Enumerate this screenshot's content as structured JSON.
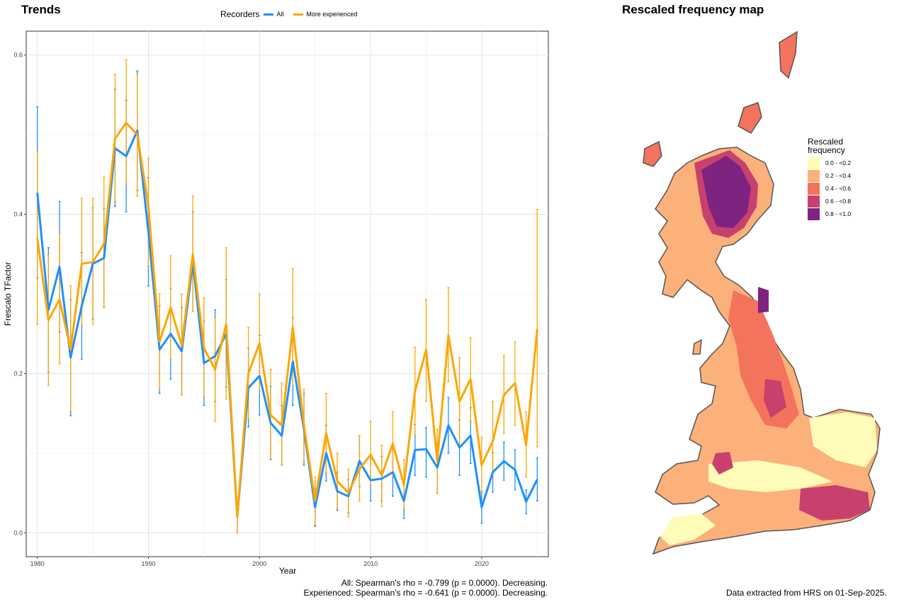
{
  "trends_title": "Trends",
  "map_title": "Rescaled frequency map",
  "legend": {
    "title": "Recorders",
    "items": [
      {
        "label": "All",
        "color": "#1E90FF"
      },
      {
        "label": "More experienced",
        "color": "#FFA500"
      }
    ]
  },
  "stats": {
    "line1": "All: Spearman's rho = -0.799 (p = 0.0000). Decreasing.",
    "line2": "Experienced: Spearman's rho = -0.641 (p = 0.0000). Decreasing."
  },
  "caption": "Data extracted from HRS on 01-Sep-2025.",
  "chart_data": {
    "type": "line",
    "xlabel": "Year",
    "ylabel": "Frescalo TFactor",
    "xlim": [
      1979,
      2026
    ],
    "ylim": [
      -0.03,
      0.63
    ],
    "x_ticks": [
      1980,
      1990,
      2000,
      2010,
      2020
    ],
    "y_ticks": [
      0.0,
      0.2,
      0.4,
      0.6
    ],
    "grid": true,
    "legend_position": "top",
    "x": [
      1980,
      1981,
      1982,
      1983,
      1984,
      1985,
      1986,
      1987,
      1988,
      1989,
      1990,
      1991,
      1992,
      1993,
      1994,
      1995,
      1996,
      1997,
      1998,
      1999,
      2000,
      2001,
      2002,
      2003,
      2004,
      2005,
      2006,
      2007,
      2008,
      2009,
      2010,
      2011,
      2012,
      2013,
      2014,
      2015,
      2016,
      2017,
      2018,
      2019,
      2020,
      2021,
      2022,
      2023,
      2024,
      2025
    ],
    "series": [
      {
        "name": "All",
        "color": "#1E90FF",
        "values": [
          0.427,
          0.28,
          0.334,
          0.22,
          0.285,
          0.338,
          0.345,
          0.483,
          0.473,
          0.505,
          0.378,
          0.23,
          0.25,
          0.228,
          0.34,
          0.213,
          0.222,
          0.25,
          0.02,
          0.182,
          0.197,
          0.138,
          0.122,
          0.215,
          0.13,
          0.032,
          0.1,
          0.052,
          0.046,
          0.09,
          0.066,
          0.068,
          0.076,
          0.04,
          0.104,
          0.105,
          0.082,
          0.135,
          0.107,
          0.122,
          0.032,
          0.076,
          0.09,
          0.079,
          0.039,
          0.067
        ],
        "lower": [
          0.32,
          0.202,
          0.252,
          0.147,
          0.218,
          0.268,
          0.283,
          0.41,
          0.403,
          0.43,
          0.31,
          0.175,
          0.193,
          0.173,
          0.278,
          0.16,
          0.165,
          0.183,
          0.0,
          0.133,
          0.148,
          0.092,
          0.085,
          0.16,
          0.085,
          0.008,
          0.065,
          0.028,
          0.025,
          0.058,
          0.04,
          0.04,
          0.046,
          0.018,
          0.072,
          0.07,
          0.05,
          0.1,
          0.072,
          0.087,
          0.012,
          0.051,
          0.066,
          0.054,
          0.024,
          0.04
        ],
        "upper": [
          0.535,
          0.358,
          0.416,
          0.293,
          0.352,
          0.408,
          0.407,
          0.557,
          0.543,
          0.58,
          0.446,
          0.285,
          0.307,
          0.283,
          0.403,
          0.266,
          0.28,
          0.318,
          0.04,
          0.232,
          0.248,
          0.184,
          0.16,
          0.27,
          0.175,
          0.056,
          0.135,
          0.076,
          0.067,
          0.122,
          0.092,
          0.096,
          0.106,
          0.062,
          0.136,
          0.132,
          0.113,
          0.17,
          0.142,
          0.157,
          0.052,
          0.101,
          0.114,
          0.104,
          0.054,
          0.094
        ]
      },
      {
        "name": "More experienced",
        "color": "#FFA500",
        "values": [
          0.37,
          0.267,
          0.293,
          0.23,
          0.338,
          0.34,
          0.363,
          0.495,
          0.515,
          0.5,
          0.41,
          0.24,
          0.283,
          0.235,
          0.35,
          0.232,
          0.205,
          0.262,
          0.02,
          0.2,
          0.238,
          0.148,
          0.135,
          0.258,
          0.135,
          0.04,
          0.125,
          0.065,
          0.05,
          0.08,
          0.098,
          0.072,
          0.112,
          0.06,
          0.178,
          0.23,
          0.09,
          0.248,
          0.165,
          0.193,
          0.085,
          0.115,
          0.173,
          0.188,
          0.11,
          0.256
        ],
        "lower": [
          0.262,
          0.185,
          0.212,
          0.152,
          0.26,
          0.262,
          0.283,
          0.416,
          0.438,
          0.423,
          0.335,
          0.18,
          0.218,
          0.173,
          0.278,
          0.17,
          0.14,
          0.168,
          0.0,
          0.143,
          0.178,
          0.093,
          0.085,
          0.185,
          0.09,
          0.01,
          0.075,
          0.03,
          0.02,
          0.04,
          0.06,
          0.033,
          0.07,
          0.03,
          0.122,
          0.165,
          0.05,
          0.19,
          0.11,
          0.14,
          0.05,
          0.07,
          0.125,
          0.135,
          0.07,
          0.108
        ],
        "upper": [
          0.48,
          0.349,
          0.376,
          0.31,
          0.42,
          0.42,
          0.447,
          0.576,
          0.594,
          0.576,
          0.47,
          0.3,
          0.348,
          0.3,
          0.423,
          0.295,
          0.27,
          0.358,
          0.04,
          0.258,
          0.3,
          0.205,
          0.188,
          0.332,
          0.18,
          0.07,
          0.175,
          0.1,
          0.08,
          0.122,
          0.14,
          0.11,
          0.152,
          0.092,
          0.233,
          0.293,
          0.13,
          0.308,
          0.22,
          0.245,
          0.12,
          0.165,
          0.223,
          0.24,
          0.152,
          0.406
        ]
      }
    ]
  },
  "map_legend": {
    "title_line1": "Rescaled",
    "title_line2": "frequency",
    "items": [
      {
        "label": "0.0 - <0.2",
        "color": "#FFFBB8"
      },
      {
        "label": "0.2 - <0.4",
        "color": "#FCB07A"
      },
      {
        "label": "0.4 - <0.6",
        "color": "#F4735C"
      },
      {
        "label": "0.6 - <0.8",
        "color": "#C8406E"
      },
      {
        "label": "0.8 - <1.0",
        "color": "#7E2480"
      }
    ]
  }
}
